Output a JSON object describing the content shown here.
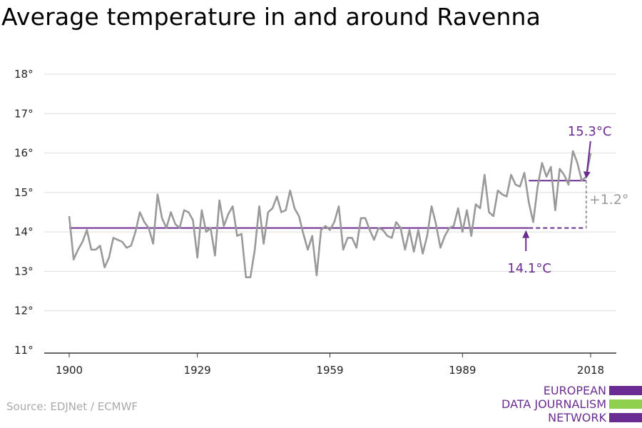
{
  "title": "Average temperature in and around Ravenna",
  "source": "Source: EDJNet / ECMWF",
  "logo": {
    "lines": [
      "EUROPEAN",
      "DATA JOURNALISM",
      "NETWORK"
    ],
    "text_color": "#6b2c91",
    "bar_colors": [
      "#6b2c91",
      "#8fd14f",
      "#6b2c91"
    ]
  },
  "colors": {
    "line": "#999999",
    "accent": "#6b2c91",
    "grid": "#dddddd"
  },
  "chart_data": {
    "type": "line",
    "title": "Average temperature in and around Ravenna",
    "xlabel": "",
    "ylabel": "",
    "xlim": [
      1900,
      2018
    ],
    "ylim": [
      11,
      18
    ],
    "grid": true,
    "x_ticks": [
      1900,
      1929,
      1959,
      1989,
      2018
    ],
    "x_tick_labels": [
      "1900",
      "1929",
      "1959",
      "1989",
      "2018"
    ],
    "y_ticks": [
      11,
      12,
      13,
      14,
      15,
      16,
      17,
      18
    ],
    "y_tick_labels": [
      "11°",
      "12°",
      "13°",
      "14°",
      "15°",
      "16°",
      "17°",
      "18°"
    ],
    "series": [
      {
        "x_start": 1900,
        "x_end": 2018,
        "values": [
          14.4,
          13.3,
          13.55,
          13.75,
          14.05,
          13.55,
          13.55,
          13.65,
          13.1,
          13.35,
          13.85,
          13.8,
          13.75,
          13.6,
          13.65,
          14.0,
          14.5,
          14.25,
          14.1,
          13.7,
          14.95,
          14.35,
          14.1,
          14.5,
          14.2,
          14.1,
          14.55,
          14.5,
          14.3,
          13.35,
          14.55,
          14.0,
          14.1,
          13.4,
          14.8,
          14.15,
          14.45,
          14.65,
          13.9,
          13.95,
          12.85,
          12.85,
          13.55,
          14.65,
          13.7,
          14.5,
          14.6,
          14.9,
          14.5,
          14.55,
          15.05,
          14.6,
          14.4,
          13.95,
          13.55,
          13.9,
          12.9,
          14.05,
          14.15,
          14.05,
          14.25,
          14.65,
          13.55,
          13.85,
          13.85,
          13.6,
          14.35,
          14.35,
          14.05,
          13.8,
          14.1,
          14.05,
          13.9,
          13.85,
          14.25,
          14.1,
          13.55,
          14.05,
          13.5,
          14.05,
          13.45,
          13.9,
          14.65,
          14.2,
          13.6,
          13.9,
          14.1,
          14.15,
          14.6,
          14.0,
          14.55,
          13.9,
          14.7,
          14.6,
          15.45,
          14.5,
          14.4,
          15.05,
          14.95,
          14.9,
          15.45,
          15.2,
          15.15,
          15.5,
          14.75,
          14.25,
          15.15,
          15.75,
          15.4,
          15.65,
          14.55,
          15.6,
          15.45,
          15.2,
          16.05,
          15.75,
          15.3,
          15.4,
          16.0
        ]
      }
    ],
    "reference_lines": [
      {
        "value": 14.1,
        "from": 1900,
        "solid_to": 2004,
        "dashed_to": 2017,
        "label": "14.1°C"
      },
      {
        "value": 15.3,
        "from": 2004,
        "to": 2017,
        "label": "15.3°C"
      }
    ],
    "difference_label": "+1.2°"
  }
}
